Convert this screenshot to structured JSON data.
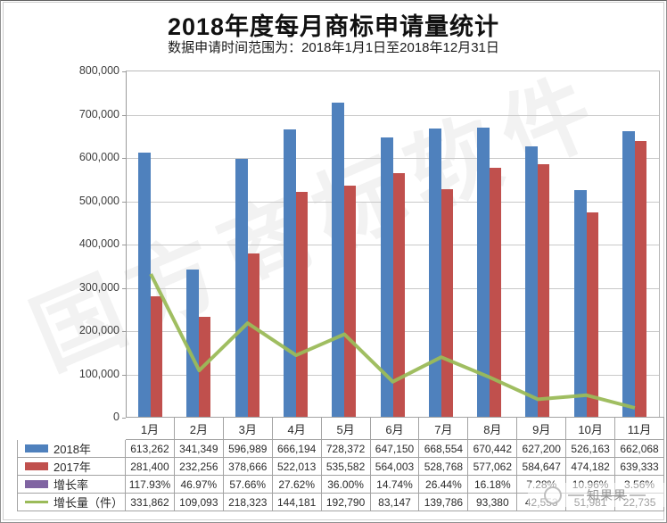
{
  "page": {
    "title": "2018年度每月商标申请量统计",
    "subtitle": "数据申请时间范围为：2018年1月1日至2018年12月31日"
  },
  "watermarks": {
    "diagonal_text": "国方商标软件",
    "corner_text": "知果果"
  },
  "colors": {
    "bar_2018": "#4F81BD",
    "bar_2017": "#C0504D",
    "growth_rate": "#8064A2",
    "growth_amount_line": "#9BBB59",
    "gridline": "#c9c9c9"
  },
  "chart_data": {
    "type": "bar",
    "title": "2018年度每月商标申请量统计",
    "subtitle": "数据申请时间范围为：2018年1月1日至2018年12月31日",
    "categories": [
      "1月",
      "2月",
      "3月",
      "4月",
      "5月",
      "6月",
      "7月",
      "8月",
      "9月",
      "10月",
      "11月"
    ],
    "series": [
      {
        "name": "2018年",
        "type": "bar",
        "color": "#4F81BD",
        "values": [
          613262,
          341349,
          596989,
          666194,
          728372,
          647150,
          668554,
          670442,
          627200,
          526163,
          662068
        ]
      },
      {
        "name": "2017年",
        "type": "bar",
        "color": "#C0504D",
        "values": [
          281400,
          232256,
          378666,
          522013,
          535582,
          564003,
          528768,
          577062,
          584647,
          474182,
          639333
        ]
      },
      {
        "name": "增长率",
        "type": "bar",
        "color": "#8064A2",
        "values_percent": [
          "117.93%",
          "46.97%",
          "57.66%",
          "27.62%",
          "36.00%",
          "14.74%",
          "26.44%",
          "16.18%",
          "7.28%",
          "10.96%",
          "3.56%"
        ]
      },
      {
        "name": "增长量（件）",
        "type": "line",
        "color": "#9BBB59",
        "values": [
          331862,
          109093,
          218323,
          144181,
          192790,
          83147,
          139786,
          93380,
          42553,
          51981,
          22735
        ]
      }
    ],
    "xlabel": "",
    "ylabel": "",
    "ylim": [
      0,
      800000
    ],
    "ytick_interval": 100000,
    "ytick_labels": [
      "800,000",
      "700,000",
      "600,000",
      "500,000",
      "400,000",
      "300,000",
      "200,000",
      "100,000",
      "0"
    ],
    "grid": true,
    "legend_position": "data-table-left"
  },
  "table": {
    "months": [
      "1月",
      "2月",
      "3月",
      "4月",
      "5月",
      "6月",
      "7月",
      "8月",
      "9月",
      "10月",
      "11月"
    ],
    "rows": [
      {
        "label": "2018年",
        "swatch": "bar",
        "color": "#4F81BD",
        "cells": [
          "613,262",
          "341,349",
          "596,989",
          "666,194",
          "728,372",
          "647,150",
          "668,554",
          "670,442",
          "627,200",
          "526,163",
          "662,068"
        ]
      },
      {
        "label": "2017年",
        "swatch": "bar",
        "color": "#C0504D",
        "cells": [
          "281,400",
          "232,256",
          "378,666",
          "522,013",
          "535,582",
          "564,003",
          "528,768",
          "577,062",
          "584,647",
          "474,182",
          "639,333"
        ]
      },
      {
        "label": "增长率",
        "swatch": "bar",
        "color": "#8064A2",
        "cells": [
          "117.93%",
          "46.97%",
          "57.66%",
          "27.62%",
          "36.00%",
          "14.74%",
          "26.44%",
          "16.18%",
          "7.28%",
          "10.96%",
          "3.56%"
        ]
      },
      {
        "label": "增长量（件）",
        "swatch": "line",
        "color": "#9BBB59",
        "cells": [
          "331,862",
          "109,093",
          "218,323",
          "144,181",
          "192,790",
          "83,147",
          "139,786",
          "93,380",
          "42,553",
          "51,981",
          "22,735"
        ]
      }
    ]
  }
}
